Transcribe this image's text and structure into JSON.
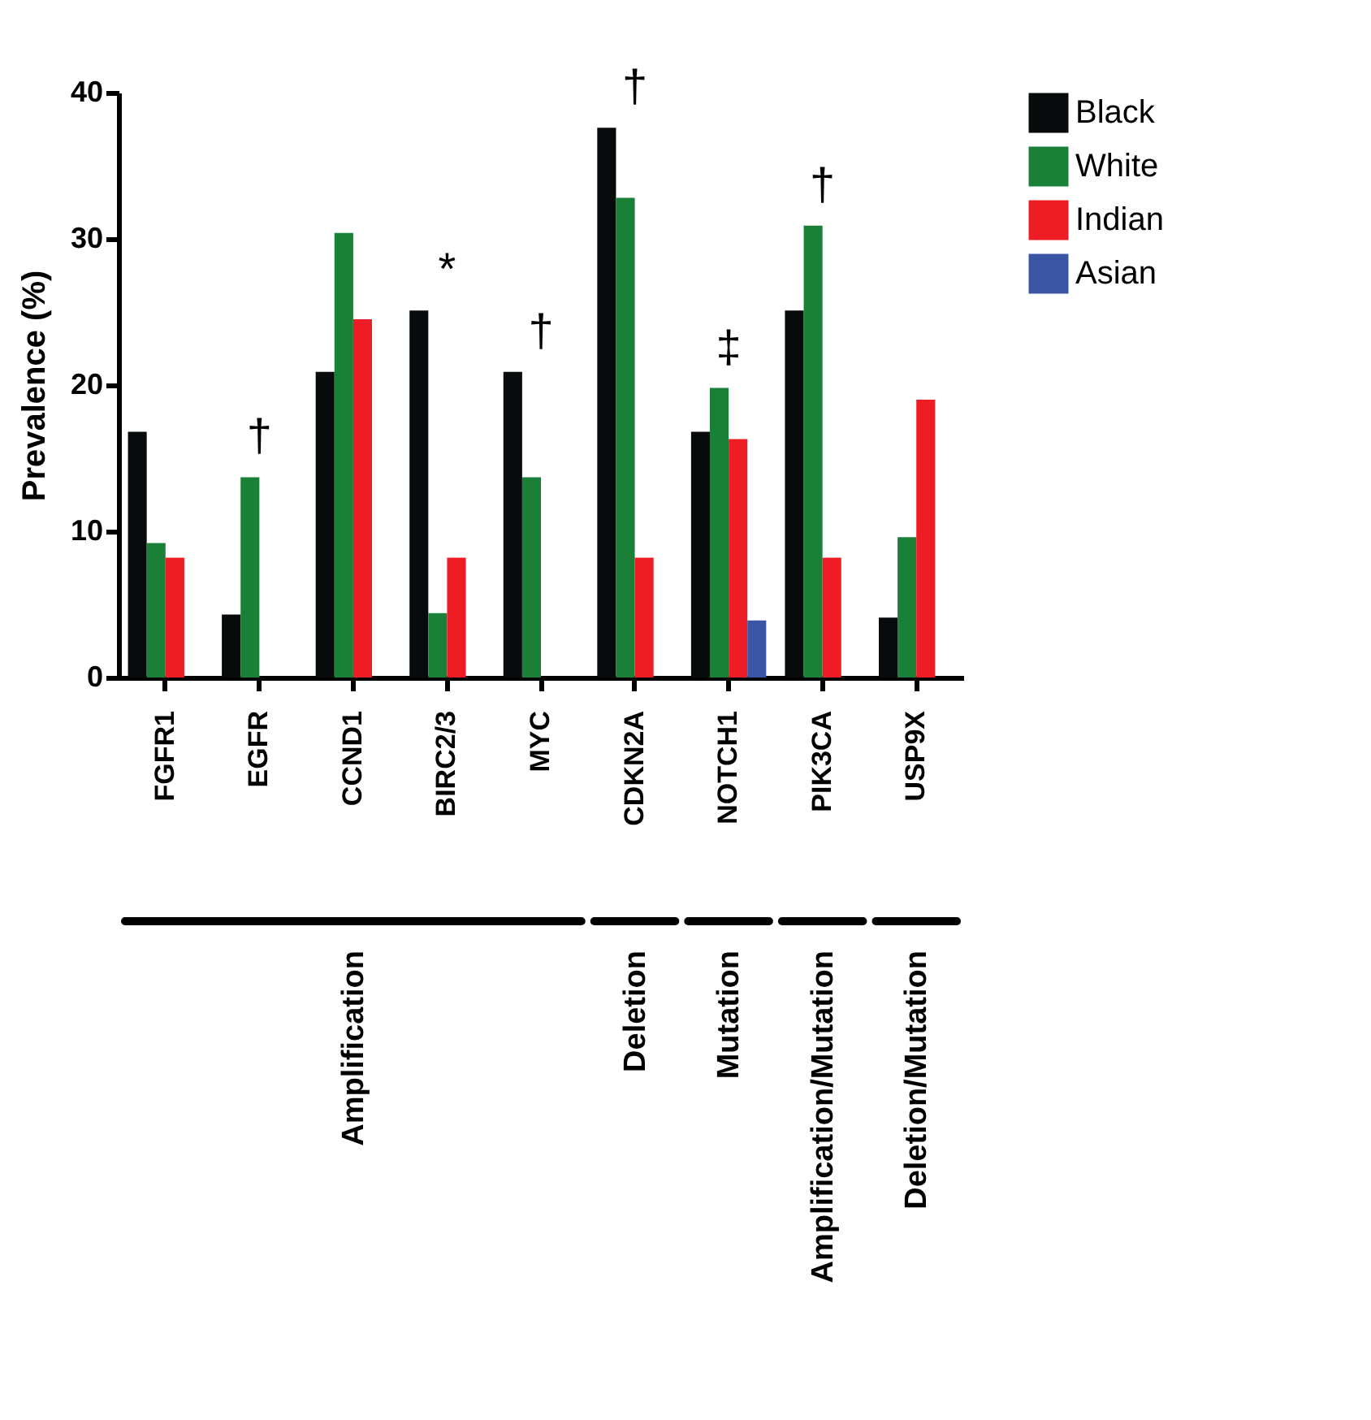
{
  "chart_data": {
    "type": "bar",
    "ylabel": "Prevalence (%)",
    "categories": [
      "FGFR1",
      "EGFR",
      "CCND1",
      "BIRC2/3",
      "MYC",
      "CDKN2A",
      "NOTCH1",
      "PIK3CA",
      "USP9X"
    ],
    "series": [
      {
        "name": "Black",
        "color": "#070b0b",
        "values": [
          16.8,
          4.3,
          20.9,
          25.1,
          20.9,
          37.6,
          16.8,
          25.1,
          4.1
        ]
      },
      {
        "name": "White",
        "color": "#1a8038",
        "values": [
          9.2,
          13.7,
          30.4,
          4.4,
          13.7,
          32.8,
          19.8,
          30.9,
          9.6
        ]
      },
      {
        "name": "Indian",
        "color": "#ee1c25",
        "values": [
          8.2,
          0,
          24.5,
          8.2,
          0,
          8.2,
          16.3,
          8.2,
          19.0
        ]
      },
      {
        "name": "Asian",
        "color": "#3a55a4",
        "values": [
          0,
          0,
          0,
          0,
          0,
          0,
          3.9,
          0,
          0
        ]
      }
    ],
    "ylim": [
      0,
      40
    ],
    "yticks": [
      0,
      10,
      20,
      30,
      40
    ],
    "grid": false,
    "legend": "top right",
    "annotations": [
      "†",
      "*",
      "†",
      "†",
      "‡",
      "†",
      "Amplification",
      "Deletion",
      "Mutation",
      "Amplification/Mutation",
      "Deletion/Mutation"
    ]
  }
}
